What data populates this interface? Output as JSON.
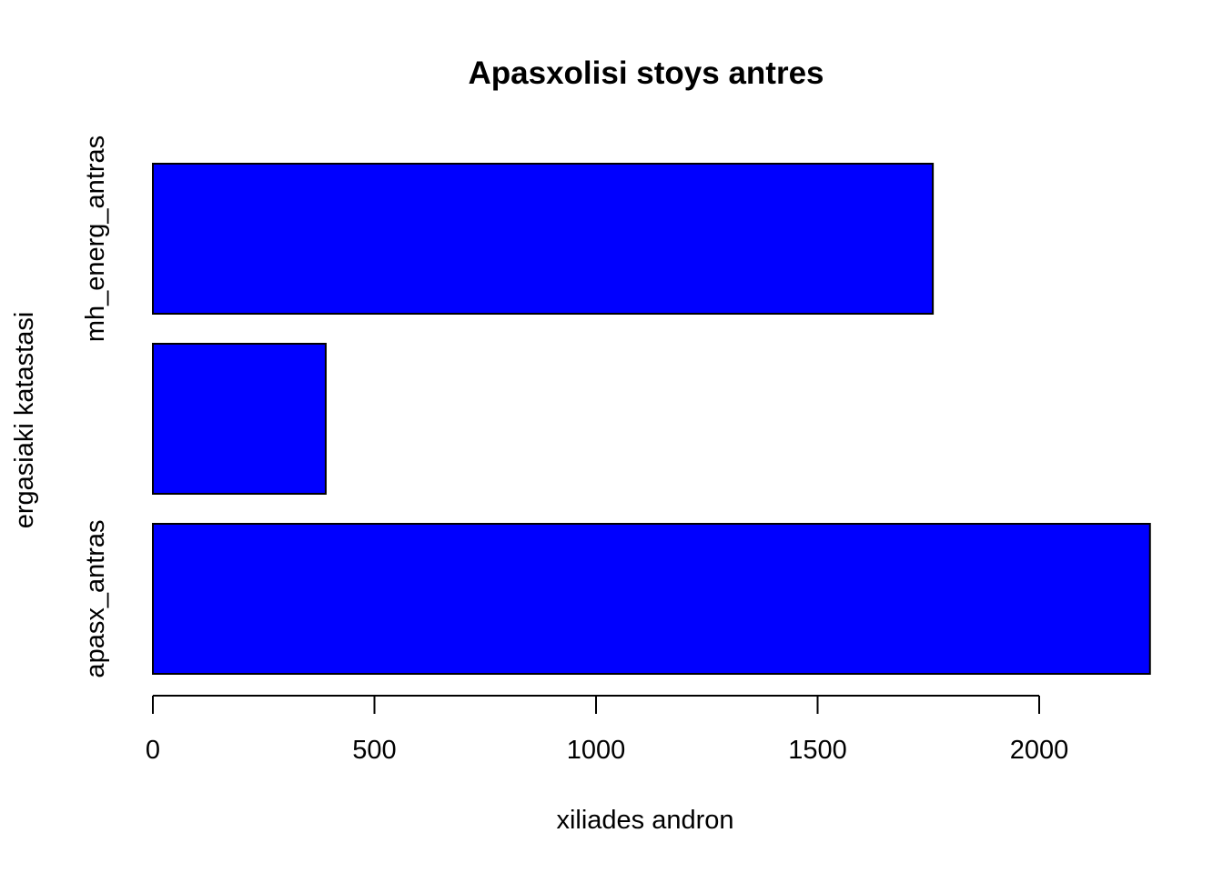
{
  "chart_data": {
    "type": "bar",
    "orientation": "horizontal",
    "title": "Apasxolisi stoys antres",
    "xlabel": "xiliades andron",
    "ylabel": "ergasiaki katastasi",
    "categories": [
      "apasx_antras",
      "",
      "mh_energ_antras"
    ],
    "category_labels_shown": [
      "apasx_antras",
      "mh_energ_antras"
    ],
    "values": [
      2250,
      390,
      1760
    ],
    "xlim": [
      0,
      2250
    ],
    "xticks": [
      0,
      500,
      1000,
      1500,
      2000
    ],
    "bar_color": "#0000ff",
    "grid": false,
    "legend": "none"
  }
}
